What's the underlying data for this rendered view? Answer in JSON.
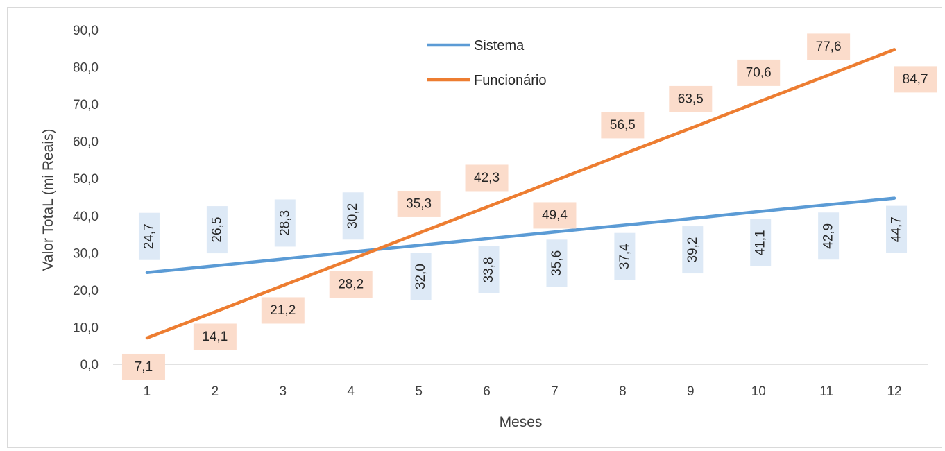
{
  "chart_data": {
    "type": "line",
    "title": "",
    "xlabel": "Meses",
    "ylabel": "Valor TotaL (mi Reais)",
    "categories": [
      "1",
      "2",
      "3",
      "4",
      "5",
      "6",
      "7",
      "8",
      "9",
      "10",
      "11",
      "12"
    ],
    "ylim": [
      0,
      90
    ],
    "yticks": [
      "0,0",
      "10,0",
      "20,0",
      "30,0",
      "40,0",
      "50,0",
      "60,0",
      "70,0",
      "80,0",
      "90,0"
    ],
    "grid": false,
    "legend": "top-center",
    "series": [
      {
        "name": "Sistema",
        "color": "#5b9bd5",
        "label_bg": "#dde9f6",
        "values": [
          24.7,
          26.5,
          28.3,
          30.2,
          32.0,
          33.8,
          35.6,
          37.4,
          39.2,
          41.1,
          42.9,
          44.7
        ],
        "labels": [
          "24,7",
          "26,5",
          "28,3",
          "30,2",
          "32,0",
          "33,8",
          "35,6",
          "37,4",
          "39,2",
          "41,1",
          "42,9",
          "44,7"
        ]
      },
      {
        "name": "Funcionário",
        "color": "#ed7d31",
        "label_bg": "#fbdccb",
        "values": [
          7.1,
          14.1,
          21.2,
          28.2,
          35.3,
          42.3,
          49.4,
          56.5,
          63.5,
          70.6,
          77.6,
          84.7
        ],
        "labels": [
          "7,1",
          "14,1",
          "21,2",
          "28,2",
          "35,3",
          "42,3",
          "49,4",
          "56,5",
          "63,5",
          "70,6",
          "77,6",
          "84,7"
        ]
      }
    ]
  }
}
